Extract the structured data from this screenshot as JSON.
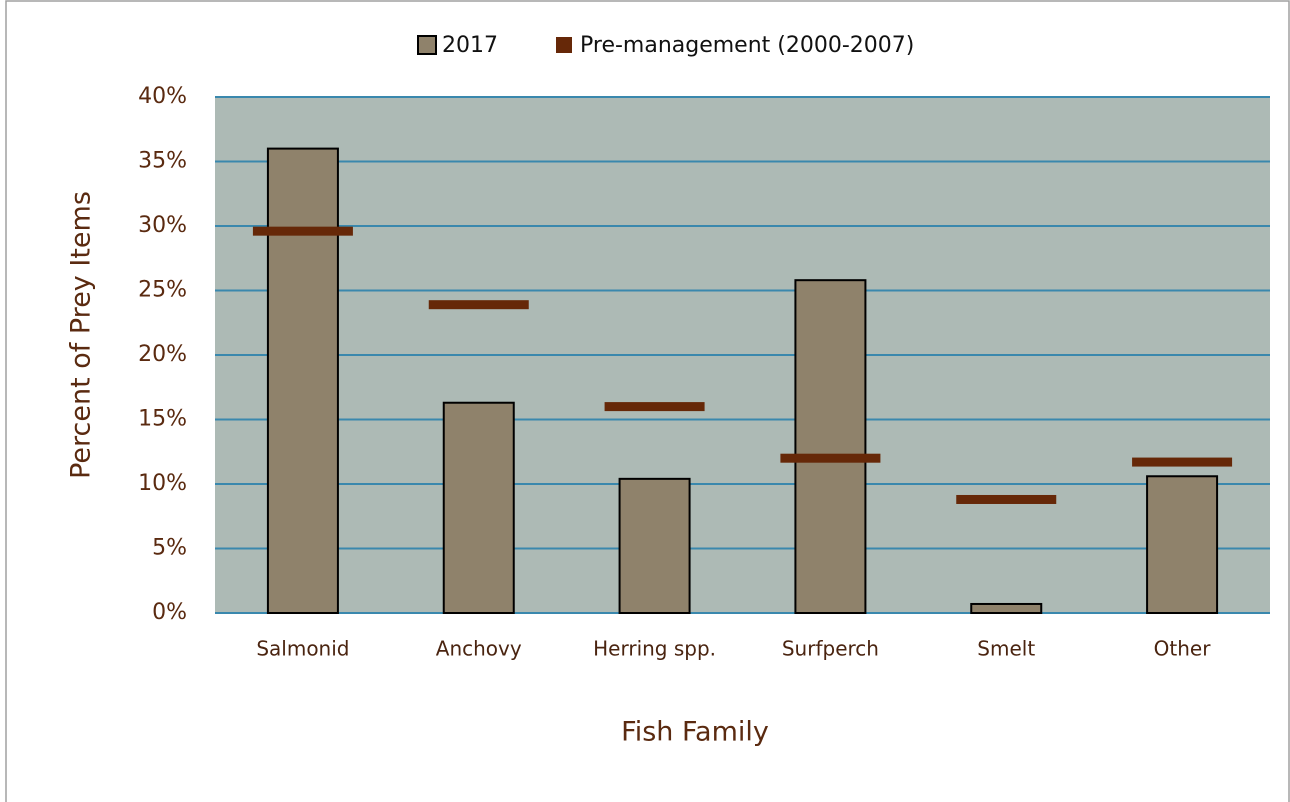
{
  "chart_data": {
    "type": "bar",
    "x_label": "Fish Family",
    "y_label": "Percent of Prey Items",
    "categories": [
      "Salmonid",
      "Anchovy",
      "Herring spp.",
      "Surfperch",
      "Smelt",
      "Other"
    ],
    "series": [
      {
        "name": "2017",
        "type": "bar",
        "color": "#8f826b",
        "values": [
          36,
          16.3,
          10.4,
          25.8,
          0.7,
          10.6
        ]
      },
      {
        "name": "Pre-management (2000-2007)",
        "type": "marker",
        "color": "#662808",
        "values": [
          29.6,
          23.9,
          16.0,
          12.0,
          8.8,
          11.7
        ]
      }
    ],
    "ylim": [
      0,
      40
    ],
    "yticks": [
      {
        "value": 0,
        "label": "0%"
      },
      {
        "value": 5,
        "label": "5%"
      },
      {
        "value": 10,
        "label": "10%"
      },
      {
        "value": 15,
        "label": "15%"
      },
      {
        "value": 20,
        "label": "20%"
      },
      {
        "value": 25,
        "label": "25%"
      },
      {
        "value": 30,
        "label": "30%"
      },
      {
        "value": 35,
        "label": "35%"
      },
      {
        "value": 40,
        "label": "40%"
      }
    ],
    "grid": true,
    "legend": "top"
  }
}
